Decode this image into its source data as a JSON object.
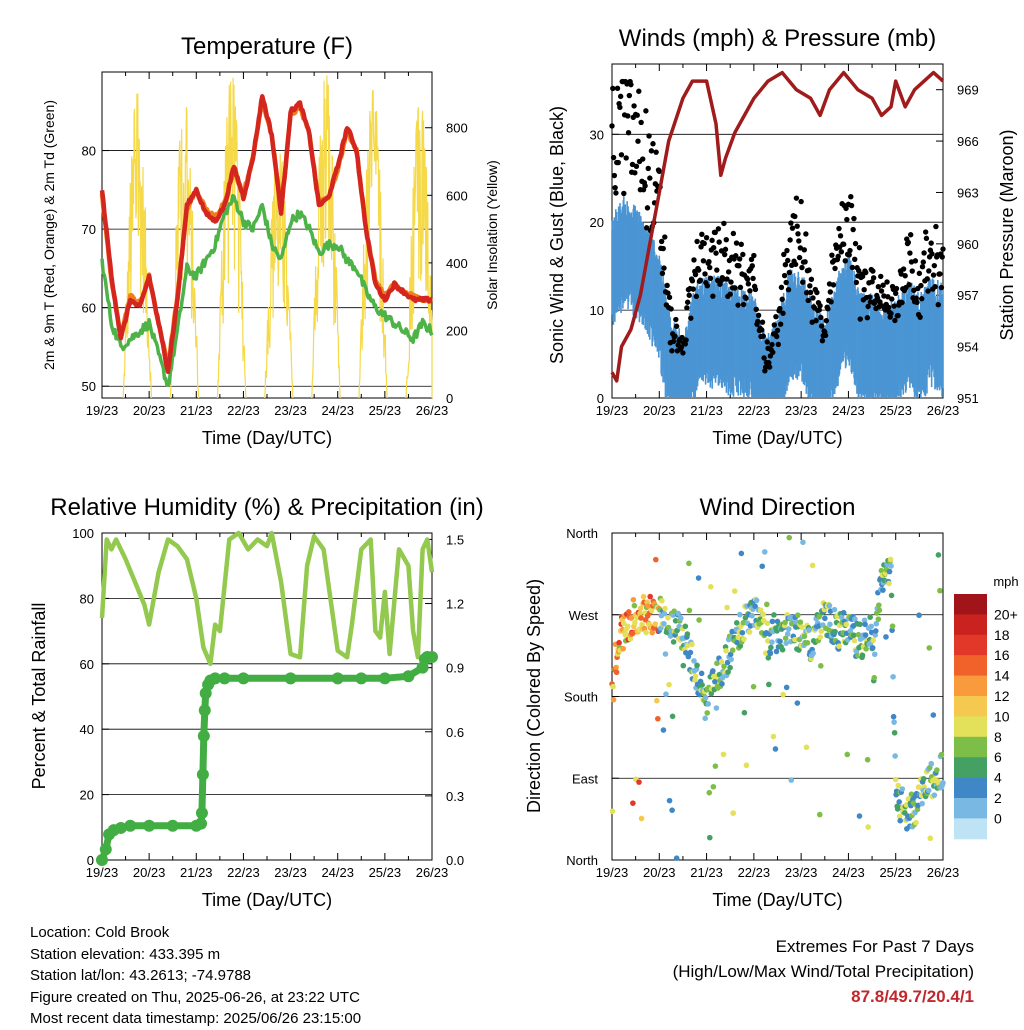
{
  "chart_data": [
    {
      "type": "line",
      "title": "Temperature (F)",
      "xlabel": "Time (Day/UTC)",
      "ylabel": "2m & 9m T (Red, Orange) & 2m Td (Green)",
      "y2label": "Solar Insolation (Yellow)",
      "x_ticks": [
        "19/23",
        "20/23",
        "21/23",
        "22/23",
        "23/23",
        "24/23",
        "25/23",
        "26/23"
      ],
      "ylim": [
        48.5,
        90
      ],
      "y_ticks": [
        50,
        60,
        70,
        80
      ],
      "y2lim": [
        0,
        965
      ],
      "y2_ticks": [
        0,
        200,
        400,
        600,
        800
      ],
      "x": [
        0,
        0.2,
        0.4,
        0.6,
        0.8,
        1.0,
        1.2,
        1.4,
        1.6,
        1.8,
        2.0,
        2.2,
        2.4,
        2.6,
        2.8,
        3.0,
        3.2,
        3.4,
        3.6,
        3.8,
        4.0,
        4.2,
        4.4,
        4.6,
        4.8,
        5.0,
        5.2,
        5.4,
        5.6,
        5.8,
        6.0,
        6.2,
        6.4,
        6.6,
        6.8,
        7.0
      ],
      "series": [
        {
          "name": "2m T",
          "color": "#d4261f",
          "values": [
            75,
            64,
            56,
            61,
            60,
            64,
            58,
            52,
            61,
            73,
            75,
            72,
            71,
            73,
            78,
            74,
            79,
            87,
            82,
            72,
            85,
            86,
            82,
            73,
            74,
            78,
            83,
            80,
            70,
            63,
            61,
            63,
            62,
            61,
            61,
            61
          ]
        },
        {
          "name": "9m T",
          "color": "#f07f1a",
          "values": [
            74.5,
            63.5,
            56.5,
            61.5,
            60.5,
            64,
            58,
            52.5,
            61.5,
            72.5,
            75,
            72.5,
            71.5,
            73.5,
            77.5,
            74.5,
            79,
            86.5,
            82,
            72.5,
            84.5,
            85.5,
            82,
            73.5,
            74,
            77.5,
            82.5,
            80,
            70,
            63.5,
            61.5,
            63,
            62,
            61.5,
            61,
            61
          ]
        },
        {
          "name": "2m Td",
          "color": "#4db247",
          "values": [
            66,
            58,
            55,
            56,
            57,
            58,
            54,
            50,
            57,
            65,
            64,
            66,
            68,
            72,
            74,
            71,
            70,
            73,
            68,
            66,
            71,
            72,
            70,
            67,
            68,
            68,
            66,
            65,
            62,
            60,
            59,
            58,
            57,
            56,
            58,
            57
          ]
        }
      ],
      "solar_days": [
        0,
        1,
        2,
        3,
        4,
        5,
        6
      ],
      "solar_peaks": [
        900,
        880,
        960,
        750,
        960,
        910,
        880
      ]
    },
    {
      "type": "scatter",
      "title": "Winds (mph) & Pressure (mb)",
      "xlabel": "Time (Day/UTC)",
      "ylabel": "Sonic Wind & Gust (Blue, Black)",
      "y2label": "Station Pressure (Maroon)",
      "x_ticks": [
        "19/23",
        "20/23",
        "21/23",
        "22/23",
        "23/23",
        "24/23",
        "25/23",
        "26/23"
      ],
      "ylim": [
        0,
        38
      ],
      "y_ticks": [
        0,
        10,
        20,
        30
      ],
      "y2lim": [
        951,
        970.5
      ],
      "y2_ticks": [
        951,
        954,
        957,
        960,
        963,
        966,
        969
      ],
      "pressure": {
        "name": "Station Pressure",
        "color": "#a01c1c",
        "x": [
          0,
          0.1,
          0.2,
          0.4,
          0.6,
          0.8,
          1.0,
          1.2,
          1.5,
          1.7,
          2.0,
          2.2,
          2.3,
          2.4,
          2.6,
          2.8,
          3.0,
          3.3,
          3.6,
          3.9,
          4.2,
          4.4,
          4.6,
          4.9,
          5.2,
          5.5,
          5.7,
          5.9,
          6.0,
          6.2,
          6.4,
          6.6,
          6.8,
          7.0
        ],
        "values": [
          952.5,
          952,
          954,
          955,
          957,
          960,
          963,
          966,
          968.5,
          969.5,
          969.5,
          967,
          964,
          965,
          966.5,
          967.5,
          968.5,
          969.5,
          970,
          969,
          968.5,
          967.5,
          969,
          970,
          969,
          968.5,
          967.5,
          968,
          969.5,
          968,
          969,
          969.5,
          970,
          969.5
        ]
      },
      "wind_profile_x": [
        0,
        0.25,
        0.5,
        0.75,
        1.0,
        1.25,
        1.5,
        1.75,
        2.0,
        2.25,
        2.5,
        2.75,
        3.0,
        3.25,
        3.5,
        3.75,
        4.0,
        4.25,
        4.5,
        4.75,
        5.0,
        5.25,
        5.5,
        5.75,
        6.0,
        6.25,
        6.5,
        6.75,
        7.0
      ],
      "wind_profile": [
        15,
        17,
        16,
        14,
        11,
        3,
        2,
        7,
        8,
        8,
        7,
        7,
        6,
        1,
        3,
        9,
        9,
        5,
        3,
        8,
        11,
        6,
        6,
        5,
        5,
        8,
        6,
        8,
        7
      ]
    },
    {
      "type": "line",
      "title": "Relative Humidity (%) & Precipitation (in)",
      "xlabel": "Time (Day/UTC)",
      "ylabel": "Percent & Total Rainfall",
      "x_ticks": [
        "19/23",
        "20/23",
        "21/23",
        "22/23",
        "23/23",
        "24/23",
        "25/23",
        "26/23"
      ],
      "ylim": [
        0,
        100
      ],
      "y_ticks": [
        0,
        20,
        40,
        60,
        80,
        100
      ],
      "y2lim": [
        0,
        1.53
      ],
      "y2_ticks": [
        "0.0",
        "0.3",
        "0.6",
        "0.9",
        "1.2",
        "1.5"
      ],
      "rh": {
        "name": "Relative Humidity",
        "color": "#92c94e",
        "x": [
          0,
          0.1,
          0.2,
          0.3,
          0.5,
          0.7,
          0.9,
          1.0,
          1.2,
          1.4,
          1.6,
          1.8,
          2.0,
          2.15,
          2.3,
          2.4,
          2.5,
          2.7,
          2.9,
          3.1,
          3.3,
          3.5,
          3.6,
          3.8,
          4.0,
          4.2,
          4.35,
          4.5,
          4.7,
          5.0,
          5.2,
          5.3,
          5.5,
          5.7,
          5.8,
          5.9,
          6.0,
          6.1,
          6.3,
          6.5,
          6.6,
          6.7,
          6.8,
          6.9,
          7.0
        ],
        "values": [
          74,
          98,
          95,
          98,
          92,
          85,
          78,
          72,
          88,
          98,
          96,
          92,
          80,
          65,
          60,
          72,
          70,
          98,
          100,
          95,
          98,
          96,
          100,
          85,
          63,
          62,
          90,
          99,
          95,
          64,
          62,
          72,
          95,
          98,
          70,
          68,
          82,
          63,
          95,
          90,
          70,
          62,
          95,
          98,
          88
        ]
      },
      "precip": {
        "name": "Total Precipitation",
        "color": "#41ad43",
        "x": [
          0,
          0.08,
          0.15,
          0.25,
          0.4,
          0.6,
          1.0,
          1.5,
          2.0,
          2.1,
          2.12,
          2.14,
          2.16,
          2.18,
          2.2,
          2.25,
          2.3,
          2.4,
          2.6,
          3.0,
          4.0,
          5.0,
          5.5,
          6.0,
          6.5,
          6.8,
          6.85,
          6.9,
          7.0
        ],
        "values": [
          0.0,
          0.05,
          0.12,
          0.14,
          0.15,
          0.16,
          0.16,
          0.16,
          0.16,
          0.17,
          0.22,
          0.4,
          0.58,
          0.7,
          0.78,
          0.82,
          0.84,
          0.85,
          0.85,
          0.85,
          0.85,
          0.85,
          0.85,
          0.85,
          0.86,
          0.9,
          0.94,
          0.95,
          0.95
        ]
      }
    },
    {
      "type": "scatter",
      "title": "Wind Direction",
      "xlabel": "Time (Day/UTC)",
      "ylabel": "Direction (Colored By Speed)",
      "x_ticks": [
        "19/23",
        "20/23",
        "21/23",
        "22/23",
        "23/23",
        "24/23",
        "25/23",
        "26/23"
      ],
      "y_ticks": [
        "North",
        "East",
        "South",
        "West",
        "North"
      ],
      "ylim": [
        0,
        360
      ],
      "direction_profile_x": [
        0,
        0.2,
        0.5,
        0.8,
        1.0,
        1.2,
        1.5,
        1.7,
        2.0,
        2.2,
        2.5,
        2.8,
        3.0,
        3.3,
        3.5,
        3.8,
        4.0,
        4.2,
        4.5,
        4.8,
        5.0,
        5.2,
        5.5,
        5.7,
        5.9,
        6.0,
        6.1,
        6.2,
        6.4,
        6.6,
        6.8,
        7.0
      ],
      "direction_profile": [
        180,
        250,
        270,
        270,
        270,
        260,
        250,
        220,
        170,
        200,
        230,
        260,
        280,
        240,
        250,
        250,
        250,
        240,
        270,
        250,
        260,
        240,
        250,
        300,
        330,
        70,
        60,
        60,
        50,
        80,
        90,
        100
      ],
      "legend": {
        "title": "mph",
        "labels": [
          "20+",
          "18",
          "16",
          "14",
          "12",
          "10",
          "8",
          "6",
          "4",
          "2",
          "0"
        ],
        "colors": [
          "#a0141a",
          "#c9221f",
          "#e2382a",
          "#f0622a",
          "#f99a3c",
          "#f5c850",
          "#e3e15a",
          "#7dbe49",
          "#44a163",
          "#3f88c5",
          "#7ab8e4",
          "#bde3f5"
        ]
      }
    }
  ],
  "footer": {
    "location": "Location: Cold Brook",
    "elevation": "Station elevation: 433.395 m",
    "latlon": "Station lat/lon: 43.2613; -74.9788",
    "created": "Figure created on Thu, 2025-06-26, at 23:22 UTC",
    "recent": "Most recent data timestamp: 2025/06/26 23:15:00"
  },
  "extremes": {
    "heading": "Extremes For Past 7 Days",
    "subheading": "(High/Low/Max Wind/Total Precipitation)",
    "value": "87.8/49.7/20.4/1"
  }
}
